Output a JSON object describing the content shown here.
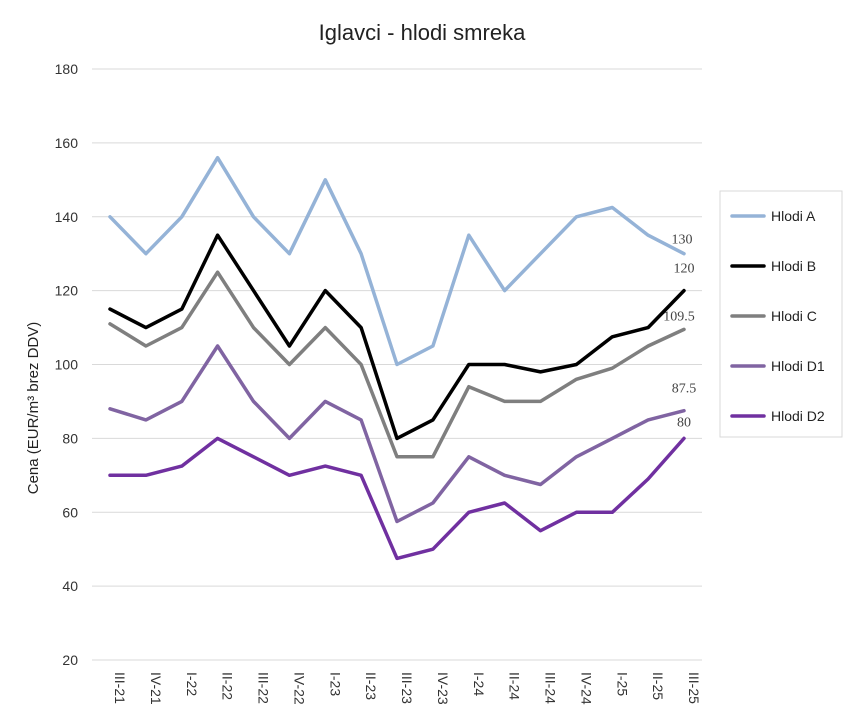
{
  "chart_data": {
    "type": "line",
    "title": "Iglavci - hlodi smreka",
    "ylabel": "Cena (EUR/m³ brez DDV)",
    "xlabel": "",
    "ylim": [
      20,
      180
    ],
    "yticks": [
      "20",
      "40",
      "60",
      "80",
      "100",
      "120",
      "140",
      "160",
      "180"
    ],
    "grid": true,
    "legend_position": "right",
    "categories": [
      "III-21",
      "IV-21",
      "I-22",
      "II-22",
      "III-22",
      "IV-22",
      "I-23",
      "II-23",
      "III-23",
      "IV-23",
      "I-24",
      "II-24",
      "III-24",
      "IV-24",
      "I-25",
      "II-25",
      "III-25"
    ],
    "series": [
      {
        "name": "Hlodi A",
        "color": "#95b3d7",
        "end_label": "130",
        "values": [
          140,
          130,
          140,
          156,
          140,
          130,
          150,
          130,
          100,
          105,
          135,
          120,
          130,
          140,
          142.5,
          135,
          130
        ]
      },
      {
        "name": "Hlodi B",
        "color": "#000000",
        "end_label": "120",
        "values": [
          115,
          110,
          115,
          135,
          120,
          105,
          120,
          110,
          80,
          85,
          100,
          100,
          98,
          100,
          107.5,
          110,
          120
        ]
      },
      {
        "name": "Hlodi C",
        "color": "#7f7f7f",
        "end_label": "109.5",
        "values": [
          111,
          105,
          110,
          125,
          110,
          100,
          110,
          100,
          75,
          75,
          94,
          90,
          90,
          96,
          99,
          105,
          109.5
        ]
      },
      {
        "name": "Hlodi D1",
        "color": "#8064a2",
        "end_label": "87.5",
        "values": [
          88,
          85,
          90,
          105,
          90,
          80,
          90,
          85,
          57.5,
          62.5,
          75,
          70,
          67.5,
          75,
          80,
          85,
          87.5
        ]
      },
      {
        "name": "Hlodi D2",
        "color": "#7030a0",
        "end_label": "80",
        "values": [
          70,
          70,
          72.5,
          80,
          75,
          70,
          72.5,
          70,
          47.5,
          50,
          60,
          62.5,
          55,
          60,
          60,
          69,
          80
        ]
      }
    ]
  }
}
